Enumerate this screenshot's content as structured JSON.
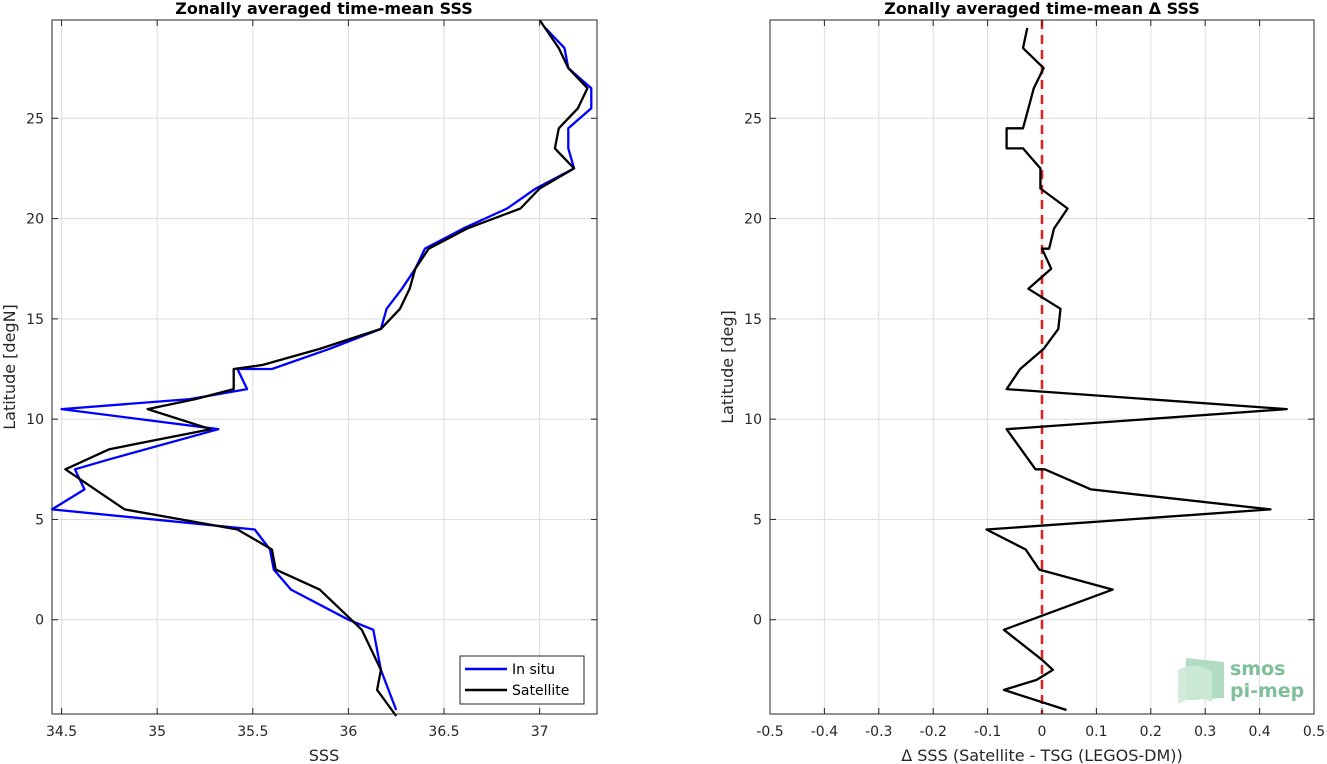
{
  "chart_data": [
    {
      "type": "line",
      "title": "Zonally averaged time-mean SSS",
      "xlabel": "SSS",
      "ylabel": "Latitude [degN]",
      "xlim": [
        34.45,
        37.3
      ],
      "ylim": [
        -4.7,
        29.9
      ],
      "xticks": [
        "34.5",
        "35",
        "35.5",
        "36",
        "36.5",
        "37"
      ],
      "yticks": [
        "0",
        "5",
        "10",
        "15",
        "20",
        "25"
      ],
      "grid": true,
      "legend": "bottom-right",
      "series": [
        {
          "name": "In situ",
          "color": "#0000ff",
          "points": [
            [
              37.03,
              29.5
            ],
            [
              37.13,
              28.5
            ],
            [
              37.15,
              27.5
            ],
            [
              37.27,
              26.5
            ],
            [
              37.27,
              25.5
            ],
            [
              37.15,
              24.5
            ],
            [
              37.15,
              23.5
            ],
            [
              37.18,
              22.5
            ],
            [
              36.98,
              21.5
            ],
            [
              36.83,
              20.5
            ],
            [
              36.6,
              19.5
            ],
            [
              36.4,
              18.5
            ],
            [
              36.35,
              17.5
            ],
            [
              36.28,
              16.5
            ],
            [
              36.2,
              15.5
            ],
            [
              36.17,
              14.5
            ],
            [
              35.9,
              13.5
            ],
            [
              35.6,
              12.5
            ],
            [
              35.42,
              12.5
            ],
            [
              35.47,
              11.5
            ],
            [
              35.17,
              11.0
            ],
            [
              34.5,
              10.5
            ],
            [
              35.32,
              9.5
            ],
            [
              34.75,
              8.0
            ],
            [
              34.57,
              7.5
            ],
            [
              34.62,
              6.5
            ],
            [
              34.45,
              5.5
            ],
            [
              35.51,
              4.5
            ],
            [
              35.59,
              3.5
            ],
            [
              35.61,
              2.5
            ],
            [
              35.7,
              1.5
            ],
            [
              36.0,
              0.0
            ],
            [
              36.13,
              -0.5
            ],
            [
              36.17,
              -2.5
            ],
            [
              36.25,
              -4.5
            ]
          ]
        },
        {
          "name": "Satellite",
          "color": "#000000",
          "points": [
            [
              37.0,
              29.9
            ],
            [
              37.1,
              28.5
            ],
            [
              37.15,
              27.5
            ],
            [
              37.25,
              26.5
            ],
            [
              37.2,
              25.5
            ],
            [
              37.1,
              24.5
            ],
            [
              37.08,
              23.5
            ],
            [
              37.18,
              22.5
            ],
            [
              37.0,
              21.5
            ],
            [
              36.9,
              20.5
            ],
            [
              36.62,
              19.5
            ],
            [
              36.42,
              18.5
            ],
            [
              36.35,
              17.5
            ],
            [
              36.32,
              16.5
            ],
            [
              36.27,
              15.5
            ],
            [
              36.17,
              14.5
            ],
            [
              35.85,
              13.5
            ],
            [
              35.55,
              12.7
            ],
            [
              35.4,
              12.5
            ],
            [
              35.4,
              11.5
            ],
            [
              35.2,
              11.0
            ],
            [
              34.95,
              10.5
            ],
            [
              35.28,
              9.5
            ],
            [
              34.75,
              8.5
            ],
            [
              34.52,
              7.5
            ],
            [
              34.83,
              5.5
            ],
            [
              35.42,
              4.5
            ],
            [
              35.6,
              3.5
            ],
            [
              35.62,
              2.5
            ],
            [
              35.85,
              1.5
            ],
            [
              35.96,
              0.5
            ],
            [
              36.07,
              -0.5
            ],
            [
              36.17,
              -2.5
            ],
            [
              36.15,
              -3.5
            ],
            [
              36.25,
              -4.8
            ]
          ]
        }
      ]
    },
    {
      "type": "line",
      "title": "Zonally averaged time-mean Δ SSS",
      "xlabel": "Δ SSS (Satellite - TSG (LEGOS-DM))",
      "ylabel": "Latitude [deg]",
      "xlim": [
        -0.5,
        0.5
      ],
      "ylim": [
        -4.7,
        29.9
      ],
      "xticks": [
        "-0.5",
        "-0.4",
        "-0.3",
        "-0.2",
        "-0.1",
        "0",
        "0.1",
        "0.2",
        "0.3",
        "0.4",
        "0.5"
      ],
      "yticks": [
        "0",
        "5",
        "10",
        "15",
        "20",
        "25"
      ],
      "grid": true,
      "reference_line": {
        "x": 0,
        "color": "#e81c1c",
        "style": "dashed"
      },
      "series": [
        {
          "color": "#000000",
          "points": [
            [
              -0.027,
              29.5
            ],
            [
              -0.035,
              28.5
            ],
            [
              0.003,
              27.5
            ],
            [
              -0.015,
              26.5
            ],
            [
              -0.025,
              25.5
            ],
            [
              -0.035,
              24.5
            ],
            [
              -0.065,
              24.5
            ],
            [
              -0.065,
              23.5
            ],
            [
              -0.035,
              23.5
            ],
            [
              -0.003,
              22.5
            ],
            [
              -0.003,
              21.5
            ],
            [
              0.047,
              20.5
            ],
            [
              0.022,
              19.5
            ],
            [
              0.013,
              18.5
            ],
            [
              0.0,
              18.5
            ],
            [
              0.017,
              17.5
            ],
            [
              -0.025,
              16.5
            ],
            [
              0.034,
              15.5
            ],
            [
              0.03,
              14.5
            ],
            [
              0.003,
              13.5
            ],
            [
              -0.04,
              12.5
            ],
            [
              -0.065,
              11.5
            ],
            [
              0.45,
              10.5
            ],
            [
              -0.065,
              9.5
            ],
            [
              -0.012,
              7.5
            ],
            [
              0.005,
              7.5
            ],
            [
              0.09,
              6.5
            ],
            [
              0.42,
              5.5
            ],
            [
              -0.102,
              4.5
            ],
            [
              -0.03,
              3.5
            ],
            [
              -0.005,
              2.5
            ],
            [
              0.13,
              1.5
            ],
            [
              0.03,
              0.5
            ],
            [
              -0.07,
              -0.5
            ],
            [
              0.0,
              -2.0
            ],
            [
              0.02,
              -2.5
            ],
            [
              -0.01,
              -3.0
            ],
            [
              -0.07,
              -3.5
            ],
            [
              0.045,
              -4.5
            ]
          ]
        }
      ]
    }
  ],
  "logo": {
    "line1": "smos",
    "line2": "pi-mep"
  }
}
